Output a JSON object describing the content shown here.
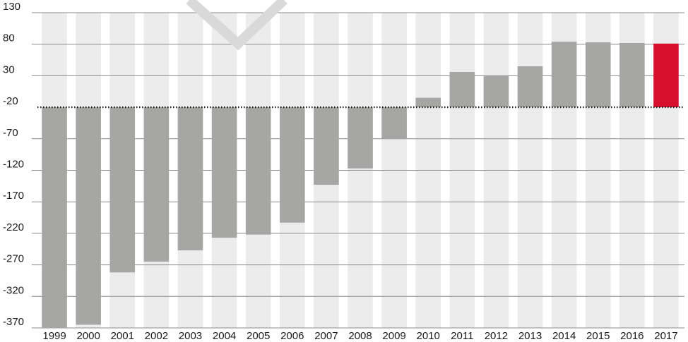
{
  "chart_data": {
    "type": "bar",
    "categories": [
      "1999",
      "2000",
      "2001",
      "2002",
      "2003",
      "2004",
      "2005",
      "2006",
      "2007",
      "2008",
      "2009",
      "2010",
      "2011",
      "2012",
      "2013",
      "2014",
      "2015",
      "2016",
      "2017"
    ],
    "values": [
      -370,
      -365,
      -282,
      -265,
      -247,
      -227,
      -222,
      -203,
      -143,
      -117,
      -70,
      -5,
      36,
      30,
      45,
      84,
      83,
      82,
      81
    ],
    "highlight_category": "2017",
    "colors": {
      "bar": "#a6a6a5",
      "highlight": "#d8102d",
      "band": "#ececec",
      "gridline": "#8c8c8c",
      "baseline": "#1a1a1a"
    },
    "y_ticks": [
      130,
      80,
      30,
      -20,
      -70,
      -120,
      -170,
      -220,
      -270,
      -320,
      -370
    ],
    "ylim": [
      -370,
      130
    ],
    "baseline_value": -20,
    "baseline_style": "dotted",
    "grid": true,
    "title": "",
    "xlabel": "",
    "ylabel": ""
  }
}
